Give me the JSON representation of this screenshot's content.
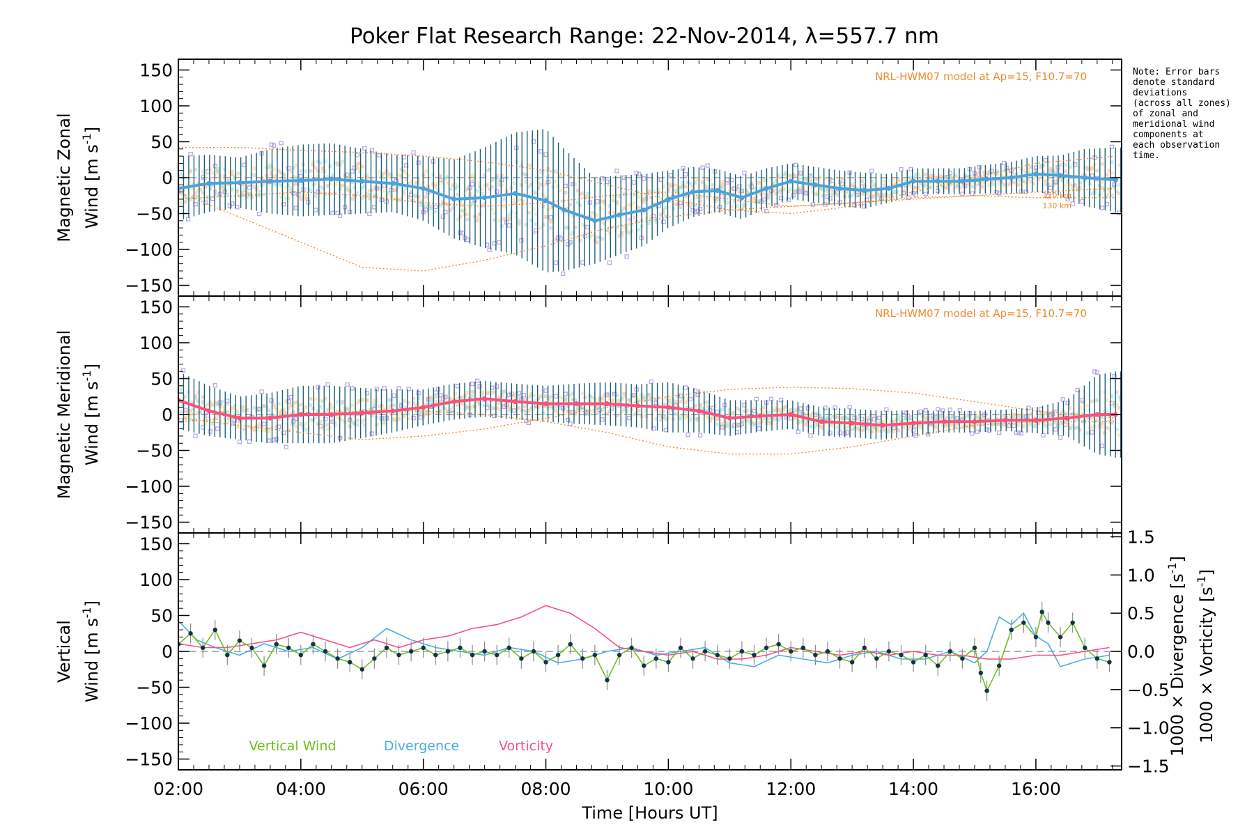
{
  "title": "Poker Flat Research Range: 22-Nov-2014, λ=557.7 nm",
  "note_lines": [
    "Note: Error bars",
    "denote standard",
    "deviations",
    "(across all zones)",
    "of zonal and",
    "meridional wind",
    "components at",
    "each observation",
    "time."
  ],
  "model_label": "NRL-HWM07 model at Ap=15, F10.7=70",
  "model_alt_labels": [
    "120 km",
    "130 km"
  ],
  "colors": {
    "zonal_mean": "#4aa3df",
    "zonal_err": "#1f5f7a",
    "meridional_mean": "#ff4f7b",
    "model": "#f08a2c",
    "scatter": "#b9a8e8",
    "vertical": "#6cbf1f",
    "vertical_pts": "#0f3348",
    "divergence": "#4aaee0",
    "vorticity": "#f0508a",
    "ref": "#9a9a9a"
  },
  "chart_data": {
    "type": "line",
    "x_axis": {
      "label_parts": [
        "Time ",
        "[",
        "Hours UT",
        "]"
      ],
      "range": [
        2.0,
        17.4
      ],
      "tick_values": [
        2,
        4,
        6,
        8,
        10,
        12,
        14,
        16
      ],
      "tick_labels": [
        "02:00",
        "04:00",
        "06:00",
        "08:00",
        "10:00",
        "12:00",
        "14:00",
        "16:00"
      ]
    },
    "panels": [
      {
        "id": "zonal",
        "ylabel_line1": "Magnetic Zonal",
        "ylabel_line2": "Wind [m s",
        "ylabel_sup": "-1",
        "ylabel_close": "]",
        "ylim": [
          -165,
          165
        ],
        "tick_values": [
          -150,
          -100,
          -50,
          0,
          50,
          100,
          150
        ],
        "tick_labels": [
          "−150",
          "−100",
          "−50",
          "0",
          "50",
          "100",
          "150"
        ],
        "series": [
          {
            "kind": "mean",
            "x": [
              2.0,
              2.5,
              3.0,
              3.5,
              4.0,
              4.5,
              5.0,
              5.5,
              6.0,
              6.5,
              7.0,
              7.5,
              8.0,
              8.3,
              8.8,
              9.2,
              9.6,
              10.0,
              10.4,
              10.8,
              11.2,
              11.6,
              12.0,
              12.4,
              12.8,
              13.2,
              13.6,
              14.0,
              14.4,
              14.8,
              15.2,
              15.6,
              16.0,
              16.4,
              16.8,
              17.3
            ],
            "y": [
              -15,
              -8,
              -7,
              -5,
              -4,
              -2,
              -5,
              -8,
              -15,
              -30,
              -28,
              -22,
              -32,
              -45,
              -60,
              -52,
              -45,
              -30,
              -20,
              -18,
              -28,
              -15,
              -5,
              -10,
              -15,
              -18,
              -15,
              -5,
              -5,
              -5,
              -2,
              0,
              5,
              3,
              0,
              -3
            ]
          },
          {
            "kind": "error",
            "x": [
              2.0,
              2.5,
              3.0,
              3.5,
              4.0,
              4.5,
              5.0,
              5.5,
              6.0,
              6.5,
              7.0,
              7.5,
              8.0,
              8.3,
              8.8,
              9.2,
              9.6,
              10.0,
              10.4,
              10.8,
              11.2,
              11.6,
              12.0,
              12.4,
              12.8,
              13.2,
              13.6,
              14.0,
              14.4,
              14.8,
              15.2,
              15.6,
              16.0,
              16.4,
              16.8,
              17.3
            ],
            "half_width": [
              45,
              40,
              35,
              45,
              50,
              50,
              45,
              40,
              45,
              55,
              70,
              85,
              100,
              85,
              60,
              55,
              50,
              40,
              35,
              30,
              30,
              28,
              25,
              25,
              25,
              25,
              20,
              18,
              18,
              18,
              20,
              22,
              25,
              28,
              40,
              45
            ]
          }
        ],
        "model_curves": [
          {
            "x": [
              2.0,
              3.0,
              4.0,
              5.0,
              6.0,
              7.0,
              8.0,
              9.0,
              10.0,
              11.0,
              12.0,
              13.0,
              14.0,
              15.0,
              16.0,
              17.3
            ],
            "y": [
              -20,
              -55,
              -90,
              -125,
              -130,
              -115,
              -95,
              -70,
              -55,
              -45,
              -40,
              -35,
              -30,
              -25,
              -20,
              -15
            ]
          },
          {
            "x": [
              2.0,
              3.0,
              4.0,
              5.0,
              6.0,
              7.0,
              8.0,
              9.0,
              10.0,
              11.0,
              12.0,
              13.0,
              14.0,
              15.0,
              16.0,
              17.3
            ],
            "y": [
              42,
              42,
              38,
              35,
              30,
              22,
              10,
              -10,
              -30,
              -45,
              -50,
              -40,
              -20,
              0,
              20,
              30
            ]
          },
          {
            "x": [
              2.0,
              3.0,
              4.0,
              5.0,
              6.0,
              7.0,
              8.0,
              9.0,
              10.0,
              11.0,
              12.0,
              13.0,
              14.0,
              15.0,
              16.0,
              17.3
            ],
            "y": [
              -30,
              -25,
              -20,
              -25,
              -35,
              -40,
              -35,
              -25,
              -20,
              -30,
              -40,
              -35,
              -28,
              -25,
              -28,
              -28
            ]
          }
        ]
      },
      {
        "id": "meridional",
        "ylabel_line1": "Magnetic Meridional",
        "ylabel_line2": "Wind [m s",
        "ylabel_sup": "-1",
        "ylabel_close": "]",
        "ylim": [
          -165,
          165
        ],
        "tick_values": [
          -150,
          -100,
          -50,
          0,
          50,
          100,
          150
        ],
        "tick_labels": [
          "−150",
          "−100",
          "−50",
          "0",
          "50",
          "100",
          "150"
        ],
        "series": [
          {
            "kind": "mean",
            "x": [
              2.0,
              2.5,
              3.0,
              3.5,
              4.0,
              4.5,
              5.0,
              5.5,
              6.0,
              6.5,
              7.0,
              7.5,
              8.0,
              8.5,
              9.0,
              9.5,
              10.0,
              10.5,
              11.0,
              11.5,
              12.0,
              12.5,
              13.0,
              13.5,
              14.0,
              14.5,
              15.0,
              15.5,
              16.0,
              16.5,
              17.0,
              17.3
            ],
            "y": [
              20,
              5,
              -5,
              -5,
              0,
              0,
              2,
              5,
              10,
              18,
              22,
              18,
              15,
              15,
              15,
              12,
              10,
              5,
              -5,
              -2,
              0,
              -10,
              -12,
              -15,
              -12,
              -10,
              -10,
              -8,
              -8,
              -5,
              0,
              0
            ]
          },
          {
            "kind": "error",
            "x": [
              2.0,
              2.5,
              3.0,
              3.5,
              4.0,
              4.5,
              5.0,
              5.5,
              6.0,
              6.5,
              7.0,
              7.5,
              8.0,
              8.5,
              9.0,
              9.5,
              10.0,
              10.5,
              11.0,
              11.5,
              12.0,
              12.5,
              13.0,
              13.5,
              14.0,
              14.5,
              15.0,
              15.5,
              16.0,
              16.5,
              17.0,
              17.3
            ],
            "half_width": [
              40,
              35,
              30,
              35,
              40,
              40,
              35,
              30,
              25,
              25,
              25,
              25,
              25,
              28,
              30,
              30,
              35,
              30,
              25,
              22,
              20,
              20,
              20,
              20,
              18,
              15,
              15,
              15,
              18,
              25,
              55,
              60
            ]
          }
        ],
        "model_curves": [
          {
            "x": [
              2.0,
              3.0,
              4.0,
              5.0,
              6.0,
              7.0,
              8.0,
              9.0,
              10.0,
              11.0,
              12.0,
              13.0,
              14.0,
              15.0,
              16.0,
              17.3
            ],
            "y": [
              -5,
              -15,
              -25,
              -35,
              -30,
              -20,
              -5,
              10,
              25,
              35,
              38,
              36,
              30,
              18,
              5,
              -5
            ]
          },
          {
            "x": [
              2.0,
              3.0,
              4.0,
              5.0,
              6.0,
              7.0,
              8.0,
              9.0,
              10.0,
              11.0,
              12.0,
              13.0,
              14.0,
              15.0,
              16.0,
              17.3
            ],
            "y": [
              -10,
              -5,
              0,
              5,
              5,
              0,
              -10,
              -25,
              -45,
              -55,
              -55,
              -45,
              -30,
              -15,
              -10,
              -10
            ]
          }
        ]
      },
      {
        "id": "vertical",
        "ylabel_line1": "Vertical",
        "ylabel_line2": "Wind [m s",
        "ylabel_sup": "-1",
        "ylabel_close": "]",
        "ylim": [
          -165,
          165
        ],
        "tick_values": [
          -150,
          -100,
          -50,
          0,
          50,
          100,
          150
        ],
        "tick_labels": [
          "−150",
          "−100",
          "−50",
          "0",
          "50",
          "100",
          "150"
        ],
        "right_axis": {
          "ylim": [
            -1.55,
            1.55
          ],
          "tick_values": [
            -1.5,
            -1.0,
            -0.5,
            0.0,
            0.5,
            1.0,
            1.5
          ],
          "tick_labels": [
            "−1.5",
            "−1.0",
            "−0.5",
            "0.0",
            "0.5",
            "1.0",
            "1.5"
          ],
          "label_divergence": "1000 × Divergence [s",
          "label_vorticity": "1000 × Vorticity [s",
          "label_sup": "-1",
          "label_close": "]"
        },
        "legend": [
          "Vertical Wind",
          "Divergence",
          "Vorticity"
        ],
        "series": [
          {
            "name": "Vertical Wind",
            "kind": "vertical",
            "x": [
              2.0,
              2.2,
              2.4,
              2.6,
              2.8,
              3.0,
              3.2,
              3.4,
              3.6,
              3.8,
              4.0,
              4.2,
              4.4,
              4.6,
              4.8,
              5.0,
              5.2,
              5.4,
              5.6,
              5.8,
              6.0,
              6.2,
              6.4,
              6.6,
              6.8,
              7.0,
              7.2,
              7.4,
              7.6,
              7.8,
              8.0,
              8.2,
              8.4,
              8.6,
              8.8,
              9.0,
              9.2,
              9.4,
              9.6,
              9.8,
              10.0,
              10.2,
              10.4,
              10.6,
              10.8,
              11.0,
              11.2,
              11.4,
              11.6,
              11.8,
              12.0,
              12.2,
              12.4,
              12.6,
              12.8,
              13.0,
              13.2,
              13.4,
              13.6,
              13.8,
              14.0,
              14.2,
              14.4,
              14.6,
              14.8,
              15.0,
              15.1,
              15.2,
              15.4,
              15.6,
              15.8,
              16.0,
              16.1,
              16.2,
              16.4,
              16.6,
              16.8,
              17.0,
              17.2
            ],
            "y": [
              10,
              25,
              5,
              30,
              -5,
              15,
              5,
              -20,
              10,
              5,
              -5,
              10,
              0,
              -10,
              -15,
              -25,
              -10,
              5,
              -5,
              0,
              5,
              -5,
              0,
              5,
              -5,
              0,
              -5,
              5,
              -10,
              0,
              -15,
              -5,
              10,
              -10,
              -5,
              -40,
              -5,
              5,
              -20,
              -10,
              -15,
              5,
              -10,
              0,
              -5,
              -10,
              0,
              -5,
              5,
              10,
              0,
              5,
              -5,
              0,
              -10,
              -15,
              5,
              -10,
              0,
              -5,
              -15,
              -5,
              -20,
              0,
              -10,
              5,
              -30,
              -55,
              -20,
              30,
              40,
              20,
              55,
              40,
              20,
              40,
              5,
              -10,
              -15
            ]
          },
          {
            "name": "Divergence",
            "kind": "divergence",
            "x": [
              2.0,
              2.3,
              2.6,
              3.0,
              3.4,
              3.8,
              4.2,
              4.6,
              5.0,
              5.4,
              5.8,
              6.2,
              6.6,
              7.0,
              7.4,
              7.8,
              8.2,
              8.6,
              9.0,
              9.4,
              9.8,
              10.2,
              10.6,
              11.0,
              11.4,
              11.8,
              12.2,
              12.6,
              13.0,
              13.4,
              13.8,
              14.2,
              14.6,
              15.0,
              15.2,
              15.4,
              15.6,
              15.8,
              16.0,
              16.2,
              16.4,
              16.8,
              17.2
            ],
            "y": [
              0.4,
              0.15,
              0.05,
              -0.05,
              0.1,
              0.0,
              0.05,
              -0.1,
              0.05,
              0.3,
              0.15,
              0.05,
              0.0,
              -0.05,
              0.05,
              0.0,
              -0.15,
              -0.1,
              0.0,
              0.05,
              -0.05,
              0.0,
              0.05,
              -0.15,
              -0.2,
              -0.05,
              -0.1,
              -0.15,
              -0.05,
              0.0,
              -0.1,
              -0.1,
              0.0,
              -0.15,
              0.0,
              0.45,
              0.35,
              0.5,
              0.2,
              0.1,
              -0.2,
              -0.1,
              -0.05
            ]
          },
          {
            "name": "Vorticity",
            "kind": "vorticity",
            "x": [
              2.0,
              2.4,
              2.8,
              3.2,
              3.6,
              4.0,
              4.4,
              4.8,
              5.2,
              5.6,
              6.0,
              6.4,
              6.8,
              7.2,
              7.6,
              8.0,
              8.4,
              8.8,
              9.2,
              9.6,
              10.0,
              10.4,
              10.8,
              11.2,
              11.6,
              12.0,
              12.4,
              12.8,
              13.2,
              13.6,
              14.0,
              14.4,
              14.8,
              15.2,
              15.6,
              16.0,
              16.4,
              16.8,
              17.2
            ],
            "y": [
              0.1,
              0.05,
              0.05,
              0.1,
              0.15,
              0.25,
              0.15,
              0.05,
              0.15,
              0.05,
              0.15,
              0.2,
              0.3,
              0.35,
              0.45,
              0.6,
              0.5,
              0.3,
              0.05,
              0.0,
              -0.05,
              0.0,
              -0.1,
              -0.1,
              -0.05,
              0.05,
              0.0,
              -0.05,
              0.0,
              -0.05,
              0.0,
              -0.05,
              -0.05,
              -0.1,
              -0.1,
              -0.05,
              -0.05,
              0.0,
              0.05
            ]
          }
        ]
      }
    ]
  }
}
